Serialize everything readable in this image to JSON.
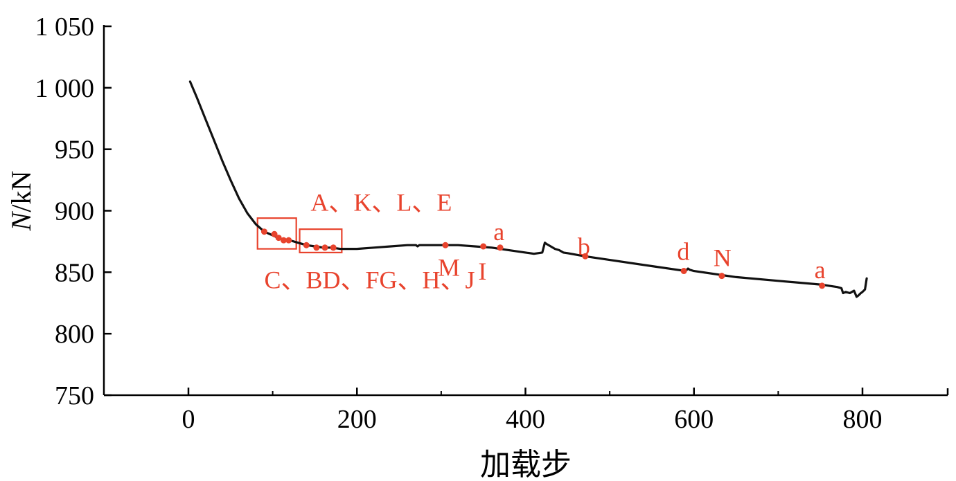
{
  "chart_data": {
    "type": "line",
    "title": "",
    "xlabel": "加载步",
    "ylabel_italic": "N",
    "ylabel_unit": "/kN",
    "xlim": [
      -100,
      900
    ],
    "ylim": [
      750,
      1050
    ],
    "x_ticks": [
      0,
      200,
      400,
      600,
      800
    ],
    "x_tick_labels": [
      "0",
      "200",
      "400",
      "600",
      "800"
    ],
    "x_minor_ticks": [
      100,
      300,
      500,
      700
    ],
    "y_ticks": [
      750,
      800,
      850,
      900,
      950,
      1000,
      1050
    ],
    "y_tick_labels": [
      "750",
      "800",
      "850",
      "900",
      "950",
      "1 000",
      "1 050"
    ],
    "grid": false,
    "colors": {
      "line": "#111111",
      "marker": "#e8432d",
      "box": "#e8432d",
      "annotation": "#e8432d"
    },
    "series": [
      {
        "x": [
          2,
          10,
          20,
          30,
          40,
          50,
          60,
          70,
          80,
          90,
          100,
          110,
          120,
          130,
          140,
          150,
          160,
          170,
          180,
          190,
          200,
          220,
          240,
          260,
          270,
          272,
          274,
          280,
          300,
          320,
          340,
          360,
          380,
          400,
          410,
          420,
          423,
          425,
          430,
          435,
          440,
          445,
          450,
          470,
          500,
          550,
          590,
          593,
          595,
          600,
          650,
          700,
          750,
          770,
          775,
          777,
          780,
          785,
          790,
          793,
          795,
          798,
          800,
          803,
          805
        ],
        "y": [
          1005,
          992,
          975,
          958,
          941,
          925,
          910,
          898,
          889,
          883,
          880,
          877,
          876,
          874,
          872,
          871,
          870,
          870,
          869,
          869,
          869,
          870,
          871,
          872,
          872,
          871,
          872,
          872,
          872,
          872,
          871,
          870,
          868,
          866,
          865,
          866,
          874,
          873,
          871,
          869,
          868,
          866,
          865.5,
          863,
          860,
          855,
          851,
          853,
          852,
          851,
          846,
          843,
          840,
          838,
          837,
          833,
          834,
          833,
          835,
          830,
          831,
          833,
          834,
          836,
          845
        ]
      }
    ],
    "markers": [
      {
        "x": 90,
        "y": 883
      },
      {
        "x": 102,
        "y": 881
      },
      {
        "x": 107,
        "y": 878
      },
      {
        "x": 113,
        "y": 876
      },
      {
        "x": 119,
        "y": 876
      },
      {
        "x": 140,
        "y": 872
      },
      {
        "x": 152,
        "y": 870
      },
      {
        "x": 162,
        "y": 870
      },
      {
        "x": 172,
        "y": 870
      },
      {
        "x": 305,
        "y": 872
      },
      {
        "x": 350,
        "y": 871
      },
      {
        "x": 370,
        "y": 870
      },
      {
        "x": 471,
        "y": 863
      },
      {
        "x": 588,
        "y": 851
      },
      {
        "x": 633,
        "y": 847
      },
      {
        "x": 752,
        "y": 839
      }
    ],
    "boxes": [
      {
        "x0": 82,
        "x1": 128,
        "y0": 869,
        "y1": 894
      },
      {
        "x0": 132,
        "x1": 182,
        "y0": 866,
        "y1": 885
      }
    ],
    "annotations": [
      {
        "text": "A、K、L、E",
        "x": 145,
        "y": 900
      },
      {
        "text": "C、BD、FG、H、J",
        "x": 90,
        "y": 837
      },
      {
        "text": "M",
        "x": 296,
        "y": 847
      },
      {
        "text": "I",
        "x": 344,
        "y": 844
      },
      {
        "text": "a",
        "x": 362,
        "y": 876
      },
      {
        "text": "b",
        "x": 462,
        "y": 864
      },
      {
        "text": "d",
        "x": 580,
        "y": 860
      },
      {
        "text": "N",
        "x": 623,
        "y": 855
      },
      {
        "text": "a",
        "x": 743,
        "y": 845
      }
    ]
  }
}
